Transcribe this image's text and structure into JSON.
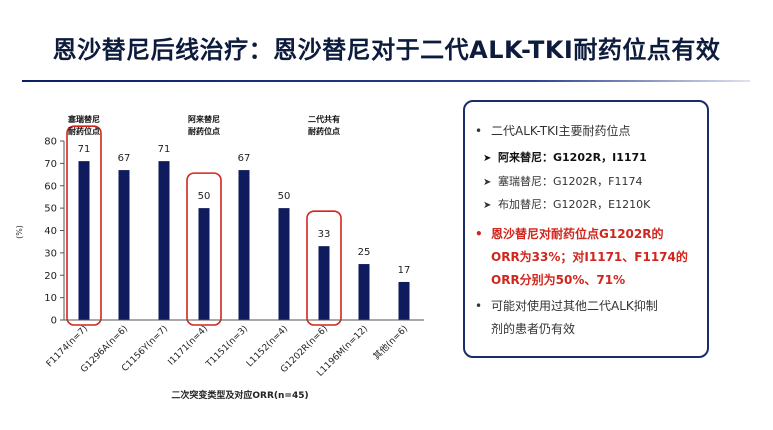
{
  "title": "恩沙替尼后线治疗：恩沙替尼对于二代ALK-TKI耐药位点有效",
  "colors": {
    "bar": "#0f1b5c",
    "highlight": "#d0261d",
    "title": "#0d1b3d",
    "box_border": "#1b2c6b"
  },
  "chart_data": {
    "type": "bar",
    "categories": [
      "F1174(n=7)",
      "G1296A(n=6)",
      "C1156Y(n=7)",
      "I1171(n=4)",
      "T1151(n=3)",
      "L1152(n=4)",
      "G1202R(n=6)",
      "L1196M(n=12)",
      "其他(n=6)"
    ],
    "values": [
      71,
      67,
      71,
      50,
      67,
      50,
      33,
      25,
      17
    ],
    "data_labels": [
      "71",
      "67",
      "71",
      "50",
      "67",
      "50",
      "33",
      "25",
      "17"
    ],
    "ylabel": "(%)",
    "xlabel": "二次突变类型及对应ORR(n=45)",
    "ylim": [
      0,
      80
    ],
    "yticks": [
      "0",
      "10",
      "20",
      "30",
      "40",
      "50",
      "60",
      "70",
      "80"
    ],
    "grid": false,
    "highlighted": [
      0,
      3,
      6
    ],
    "annotations": [
      {
        "lines": [
          "塞瑞替尼",
          "耐药位点"
        ],
        "category": 0
      },
      {
        "lines": [
          "阿来替尼",
          "耐药位点"
        ],
        "category": 3
      },
      {
        "lines": [
          "二代共有",
          "耐药位点"
        ],
        "category": 6
      }
    ]
  },
  "bullets": {
    "b1": "二代ALK-TKI主要耐药位点",
    "b1_sub1": "阿来替尼：G1202R，I1171",
    "b1_sub2": "塞瑞替尼：G1202R，F1174",
    "b1_sub3": "布加替尼：G1202R，E1210K",
    "b2_line1": "恩沙替尼对耐药位点G1202R的",
    "b2_line2": "ORR为33%；对I1171、F1174的",
    "b2_line3": "ORR分别为50%、71%",
    "b3_line1": "可能对使用过其他二代ALK抑制",
    "b3_line2": "剂的患者仍有效"
  }
}
